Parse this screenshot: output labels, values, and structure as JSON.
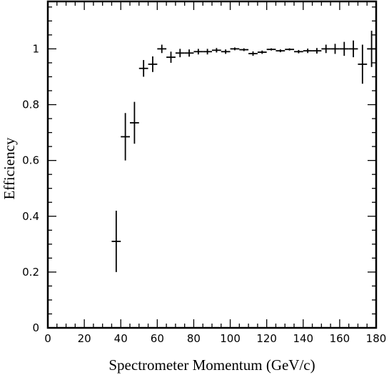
{
  "chart_data": {
    "type": "scatter",
    "title": "",
    "xlabel": "Spectrometer Momentum (GeV/c)",
    "ylabel": "Efficiency",
    "xlim": [
      0,
      180
    ],
    "ylim": [
      0,
      1.17
    ],
    "grid": false,
    "xticks": [
      0,
      20,
      40,
      60,
      80,
      100,
      120,
      140,
      160,
      180
    ],
    "yticks": [
      0,
      0.2,
      0.4,
      0.6,
      0.8,
      1
    ],
    "xtick_labels": [
      "0",
      "20",
      "40",
      "60",
      "80",
      "100",
      "120",
      "140",
      "160",
      "180"
    ],
    "ytick_labels": [
      "0",
      "0.2",
      "0.4",
      "0.6",
      "0.8",
      "1"
    ],
    "x_bin_half_width": 2.5,
    "points": [
      {
        "x": 37.5,
        "y": 0.31,
        "err": 0.11
      },
      {
        "x": 42.5,
        "y": 0.685,
        "err": 0.085
      },
      {
        "x": 47.5,
        "y": 0.735,
        "err": 0.075
      },
      {
        "x": 52.5,
        "y": 0.93,
        "err": 0.03
      },
      {
        "x": 57.5,
        "y": 0.945,
        "err": 0.028
      },
      {
        "x": 62.5,
        "y": 1.0,
        "err": 0.015
      },
      {
        "x": 67.5,
        "y": 0.97,
        "err": 0.02
      },
      {
        "x": 72.5,
        "y": 0.985,
        "err": 0.015
      },
      {
        "x": 77.5,
        "y": 0.985,
        "err": 0.013
      },
      {
        "x": 82.5,
        "y": 0.99,
        "err": 0.01
      },
      {
        "x": 87.5,
        "y": 0.99,
        "err": 0.01
      },
      {
        "x": 92.5,
        "y": 0.995,
        "err": 0.008
      },
      {
        "x": 97.5,
        "y": 0.99,
        "err": 0.008
      },
      {
        "x": 102.5,
        "y": 1.0,
        "err": 0.005
      },
      {
        "x": 107.5,
        "y": 0.997,
        "err": 0.005
      },
      {
        "x": 112.5,
        "y": 0.983,
        "err": 0.008
      },
      {
        "x": 117.5,
        "y": 0.988,
        "err": 0.006
      },
      {
        "x": 122.5,
        "y": 0.998,
        "err": 0.004
      },
      {
        "x": 127.5,
        "y": 0.993,
        "err": 0.005
      },
      {
        "x": 132.5,
        "y": 0.998,
        "err": 0.004
      },
      {
        "x": 137.5,
        "y": 0.99,
        "err": 0.006
      },
      {
        "x": 142.5,
        "y": 0.993,
        "err": 0.008
      },
      {
        "x": 147.5,
        "y": 0.993,
        "err": 0.01
      },
      {
        "x": 152.5,
        "y": 1.0,
        "err": 0.015
      },
      {
        "x": 157.5,
        "y": 1.0,
        "err": 0.018
      },
      {
        "x": 162.5,
        "y": 1.0,
        "err": 0.025
      },
      {
        "x": 167.5,
        "y": 1.0,
        "err": 0.03
      },
      {
        "x": 172.5,
        "y": 0.945,
        "err": 0.07
      },
      {
        "x": 177.5,
        "y": 1.0,
        "err": 0.065
      }
    ]
  }
}
